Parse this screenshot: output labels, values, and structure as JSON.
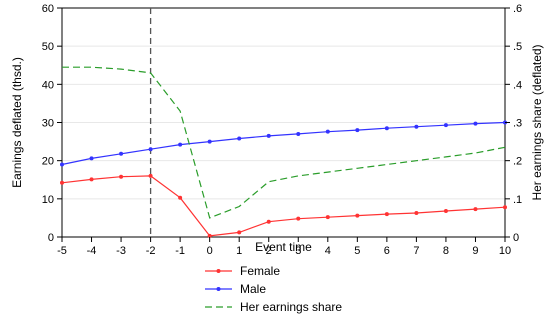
{
  "chart_data": {
    "type": "line",
    "xlabel": "Event time",
    "ylabel_left": "Earnings deflated (thsd.)",
    "ylabel_right": "Her earnings share (deflated)",
    "x": [
      -5,
      -4,
      -3,
      -2,
      -1,
      0,
      1,
      2,
      3,
      4,
      5,
      6,
      7,
      8,
      9,
      10
    ],
    "x_tick_labels": [
      "-5",
      "-4",
      "-3",
      "-2",
      "-1",
      "0",
      "1",
      "2",
      "3",
      "4",
      "5",
      "6",
      "7",
      "8",
      "9",
      "10"
    ],
    "xlim": [
      -5,
      10
    ],
    "ylim_left": [
      0,
      60
    ],
    "y_left_ticks": [
      "0",
      "10",
      "20",
      "30",
      "40",
      "50",
      "60"
    ],
    "ylim_right": [
      0,
      0.6
    ],
    "y_right_ticks": [
      "0",
      ".1",
      ".2",
      ".3",
      ".4",
      ".5",
      ".6"
    ],
    "grid": "horizontal",
    "vline_x": -2,
    "legend_position": "bottom",
    "series": [
      {
        "name": "Female",
        "axis": "left",
        "style": "solid-marker",
        "color": "#ff3333",
        "values": [
          14.2,
          15.1,
          15.8,
          16.0,
          10.3,
          0.3,
          1.2,
          4.0,
          4.8,
          5.2,
          5.6,
          6.0,
          6.3,
          6.8,
          7.3,
          7.8
        ]
      },
      {
        "name": "Male",
        "axis": "left",
        "style": "solid-marker",
        "color": "#3333ff",
        "values": [
          19.0,
          20.6,
          21.8,
          23.0,
          24.2,
          25.0,
          25.8,
          26.5,
          27.0,
          27.6,
          28.0,
          28.5,
          28.9,
          29.3,
          29.7,
          30.0
        ]
      },
      {
        "name": "Her earnings share",
        "axis": "right",
        "style": "dashed",
        "color": "#2a9d2a",
        "values": [
          0.445,
          0.445,
          0.44,
          0.43,
          0.33,
          0.05,
          0.08,
          0.145,
          0.16,
          0.17,
          0.18,
          0.19,
          0.2,
          0.21,
          0.22,
          0.235
        ]
      }
    ]
  }
}
